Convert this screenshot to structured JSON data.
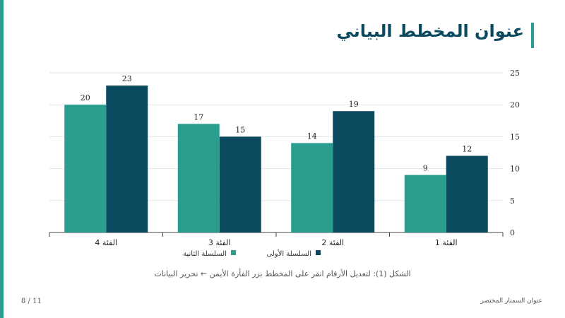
{
  "slide": {
    "title": "عنوان المخطط البياني",
    "caption": "الشكل (1): لتعديل الأرقام انقر على المخطط بزر الفأرة الأيمن ← تحرير البيانات",
    "footer_left": "8 / 11",
    "footer_right": "عنوان السمنار المختصر"
  },
  "colors": {
    "accent": "#2a9d8f",
    "series_1": "#0b4a5e",
    "series_2": "#2a9d8f",
    "title": "#0b4a5e"
  },
  "chart_data": {
    "type": "bar",
    "categories": [
      "الفئة 1",
      "الفئة 2",
      "الفئة 3",
      "الفئة 4"
    ],
    "series": [
      {
        "name": "السلسلة الأولى",
        "values": [
          12,
          19,
          15,
          23
        ]
      },
      {
        "name": "السلسلة الثانية",
        "values": [
          9,
          14,
          17,
          20
        ]
      }
    ],
    "ylim": [
      0,
      25
    ],
    "yticks": [
      0,
      5,
      10,
      15,
      20,
      25
    ],
    "grid": true,
    "legend_position": "bottom",
    "x_direction": "right-to-left",
    "y_axis_side": "right"
  }
}
